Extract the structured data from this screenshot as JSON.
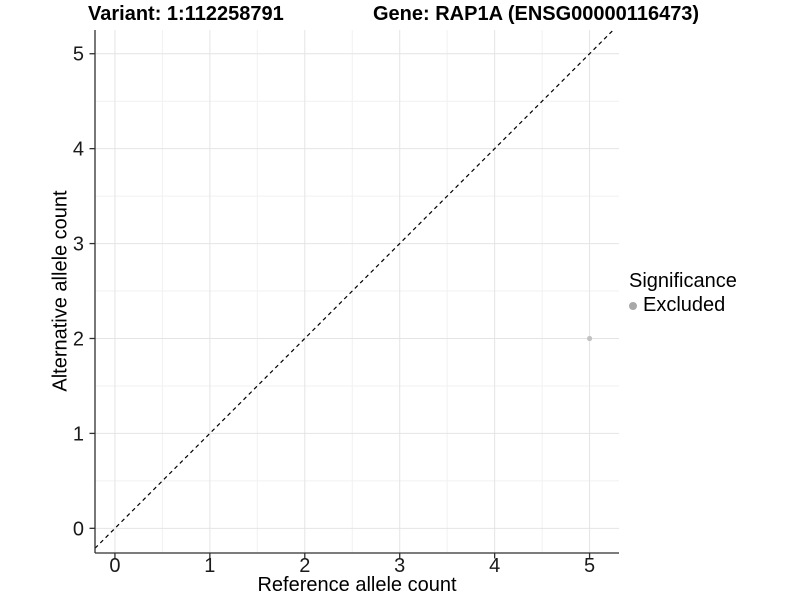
{
  "chart_data": {
    "type": "scatter",
    "title_left": "Variant: 1:112258791",
    "title_right": "Gene: RAP1A (ENSG00000116473)",
    "xlabel": "Reference allele count",
    "ylabel": "Alternative allele count",
    "xlim": [
      -0.21,
      5.31
    ],
    "ylim": [
      -0.26,
      5.25
    ],
    "xticks": [
      0,
      1,
      2,
      3,
      4,
      5
    ],
    "yticks": [
      0,
      1,
      2,
      3,
      4,
      5
    ],
    "minor_grid_step": 0.5,
    "grid": "major+minor",
    "series": [
      {
        "name": "Excluded",
        "color": "#c2c2c2",
        "marker_radius": 2.6,
        "points": [
          {
            "x": 5,
            "y": 2
          }
        ]
      }
    ],
    "reference_line": {
      "type": "identity",
      "equation": "y = x",
      "style": "dashed",
      "color": "#000000"
    },
    "legend": {
      "title": "Significance",
      "position": "right",
      "items": [
        {
          "label": "Excluded",
          "marker_color": "#a8a8a8"
        }
      ]
    },
    "colors": {
      "axis_line": "#2f2f2f",
      "tick_text": "#1a1a1a",
      "grid_major": "#e4e4e4",
      "grid_minor": "#f1f1f1",
      "background": "#ffffff"
    }
  }
}
